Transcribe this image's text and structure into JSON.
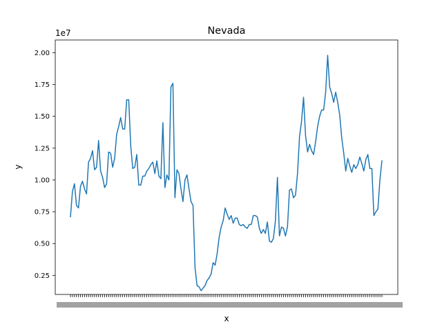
{
  "chart_data": {
    "type": "line",
    "title": "Nevada",
    "xlabel": "x",
    "ylabel": "y",
    "y_offset_text": "1e7",
    "ylim": [
      0.1,
      2.1
    ],
    "y_tick_labels": [
      "0.25",
      "0.50",
      "0.75",
      "1.00",
      "1.25",
      "1.50",
      "1.75",
      "2.00"
    ],
    "y_ticks": [
      0.25,
      0.5,
      0.75,
      1.0,
      1.25,
      1.5,
      1.75,
      2.0
    ],
    "grid": false,
    "color": "#1f77b4",
    "y_scale_note": "values in units of 1e7",
    "values": [
      0.71,
      0.91,
      0.97,
      0.8,
      0.78,
      0.95,
      0.99,
      0.93,
      0.89,
      1.14,
      1.17,
      1.23,
      1.08,
      1.1,
      1.31,
      1.07,
      1.02,
      0.94,
      0.97,
      1.22,
      1.21,
      1.1,
      1.17,
      1.36,
      1.42,
      1.49,
      1.4,
      1.4,
      1.63,
      1.63,
      1.27,
      1.09,
      1.1,
      1.2,
      0.96,
      0.96,
      1.03,
      1.03,
      1.07,
      1.09,
      1.12,
      1.14,
      1.05,
      1.15,
      1.03,
      1.01,
      1.45,
      0.94,
      1.04,
      1.0,
      1.73,
      1.76,
      0.86,
      1.08,
      1.05,
      0.93,
      0.83,
      1.0,
      1.04,
      0.93,
      0.83,
      0.8,
      0.31,
      0.17,
      0.16,
      0.13,
      0.15,
      0.17,
      0.21,
      0.23,
      0.26,
      0.35,
      0.33,
      0.42,
      0.55,
      0.63,
      0.68,
      0.78,
      0.73,
      0.69,
      0.72,
      0.66,
      0.7,
      0.7,
      0.65,
      0.64,
      0.65,
      0.63,
      0.62,
      0.65,
      0.65,
      0.72,
      0.72,
      0.71,
      0.62,
      0.58,
      0.61,
      0.58,
      0.67,
      0.52,
      0.51,
      0.54,
      0.68,
      1.02,
      0.56,
      0.63,
      0.62,
      0.56,
      0.63,
      0.92,
      0.93,
      0.86,
      0.88,
      1.05,
      1.34,
      1.46,
      1.65,
      1.35,
      1.22,
      1.28,
      1.23,
      1.2,
      1.3,
      1.42,
      1.5,
      1.55,
      1.55,
      1.69,
      1.98,
      1.73,
      1.68,
      1.61,
      1.69,
      1.61,
      1.51,
      1.33,
      1.21,
      1.07,
      1.17,
      1.11,
      1.06,
      1.12,
      1.09,
      1.12,
      1.18,
      1.13,
      1.07,
      1.16,
      1.2,
      1.09,
      1.09,
      0.72,
      0.75,
      0.77,
      1.0,
      1.15
    ],
    "x_tick_labels_note": "x tick labels are illegible (overlapping dense category labels)"
  }
}
